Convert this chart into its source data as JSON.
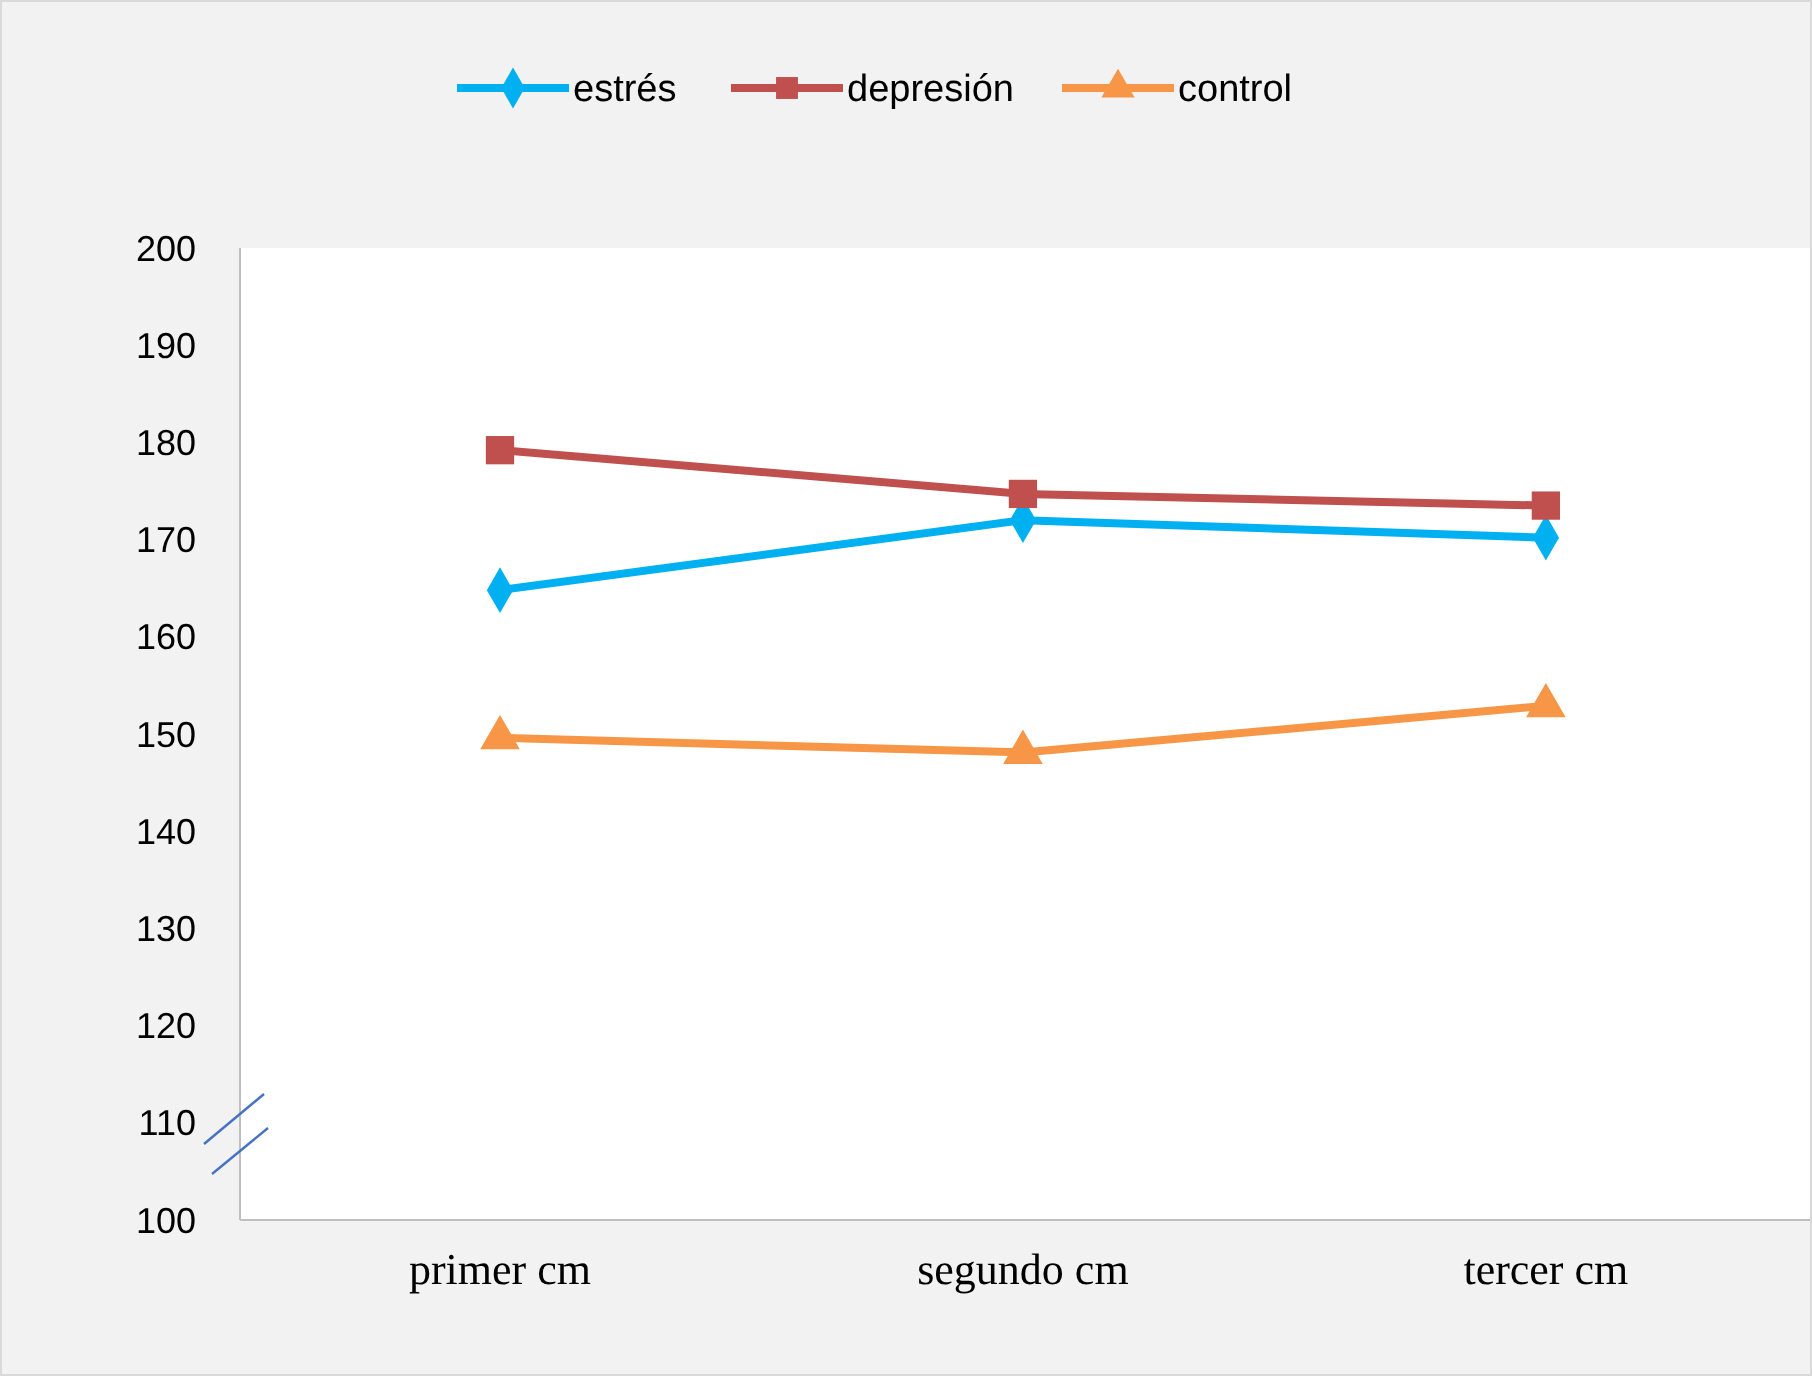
{
  "chart_data": {
    "type": "line",
    "categories": [
      "primer cm",
      "segundo cm",
      "tercer cm"
    ],
    "series": [
      {
        "name": "estrés",
        "color": "#00b0f0",
        "marker": "diamond",
        "values": [
          164.8,
          172.0,
          170.2
        ]
      },
      {
        "name": "depresión",
        "color": "#c0504d",
        "marker": "square",
        "values": [
          179.2,
          174.7,
          173.5
        ]
      },
      {
        "name": "control",
        "color": "#f79646",
        "marker": "triangle",
        "values": [
          149.6,
          148.1,
          152.9
        ]
      }
    ],
    "ylim": [
      100,
      200
    ],
    "yticks": [
      100,
      110,
      120,
      130,
      140,
      150,
      160,
      170,
      180,
      190,
      200
    ],
    "grid": false,
    "legend": "top",
    "line_style": "solid"
  }
}
